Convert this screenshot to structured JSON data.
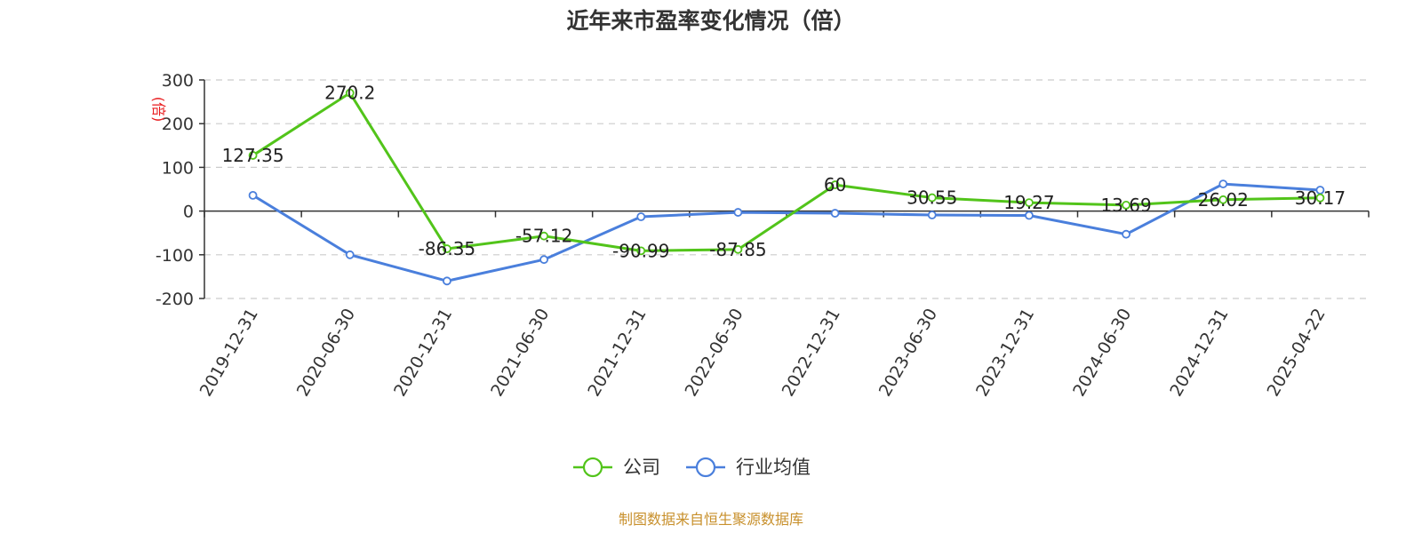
{
  "chart_data": {
    "type": "line",
    "title": "近年来市盈率变化情况（倍）",
    "ylabel": "(倍)",
    "ylim": [
      -200,
      300
    ],
    "yticks": [
      300,
      200,
      100,
      0,
      -100,
      -200
    ],
    "grid": true,
    "legend_position": "bottom-center",
    "x": [
      "2019-12-31",
      "2020-06-30",
      "2020-12-31",
      "2021-06-30",
      "2021-12-31",
      "2022-06-30",
      "2022-12-31",
      "2023-06-30",
      "2023-12-31",
      "2024-06-30",
      "2024-12-31",
      "2025-04-22"
    ],
    "series": [
      {
        "name": "公司",
        "color": "#52c41a",
        "values": [
          127.35,
          270.2,
          -86.35,
          -57.12,
          -90.99,
          -87.85,
          60,
          30.55,
          19.27,
          13.69,
          26.02,
          30.17
        ],
        "labels": [
          "127.35",
          "270.2",
          "-86.35",
          "-57.12",
          "-90.99",
          "-87.85",
          "60",
          "30.55",
          "19.27",
          "13.69",
          "26.02",
          "30.17"
        ]
      },
      {
        "name": "行业均值",
        "color": "#4a7fdc",
        "values": [
          36,
          -100,
          -160,
          -111,
          -13,
          -3,
          -5,
          -9,
          -10,
          -53,
          62,
          48
        ]
      }
    ],
    "source": "制图数据来自恒生聚源数据库"
  },
  "colors": {
    "axis": "#333333",
    "grid": "#cccccc",
    "ylabel": "#e8191b",
    "source": "#c8902c"
  }
}
